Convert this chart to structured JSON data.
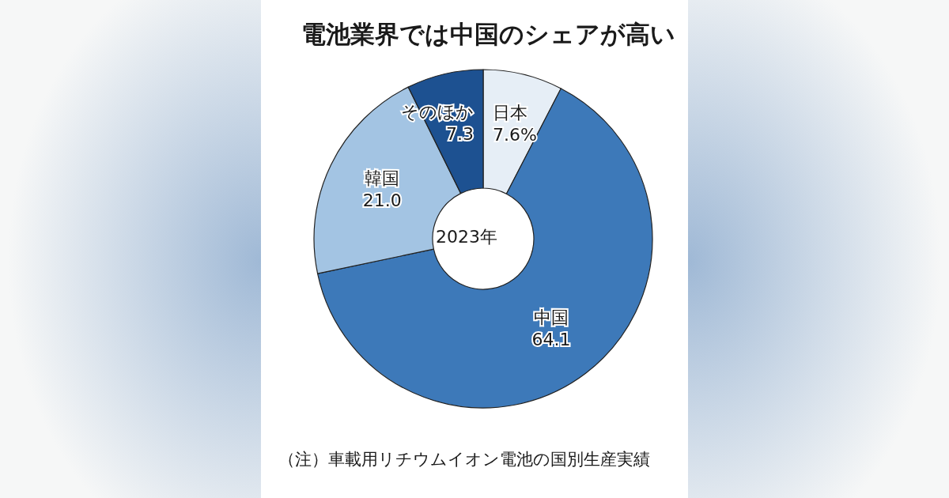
{
  "chart_data": {
    "type": "donut",
    "title": "電池業界では中国のシェアが高い",
    "categories": [
      "日本",
      "中国",
      "韓国",
      "そのほか"
    ],
    "values": [
      7.6,
      64.1,
      21.0,
      7.3
    ],
    "colors": [
      "#e6eef6",
      "#3d79b9",
      "#a3c4e3",
      "#1d5191"
    ],
    "value_labels": [
      "7.6%",
      "64.1",
      "21.0",
      "7.3"
    ],
    "legend": false,
    "annotations": [
      "2023年",
      "（注）車載用リチウムイオン電池の国別生産実績"
    ]
  }
}
